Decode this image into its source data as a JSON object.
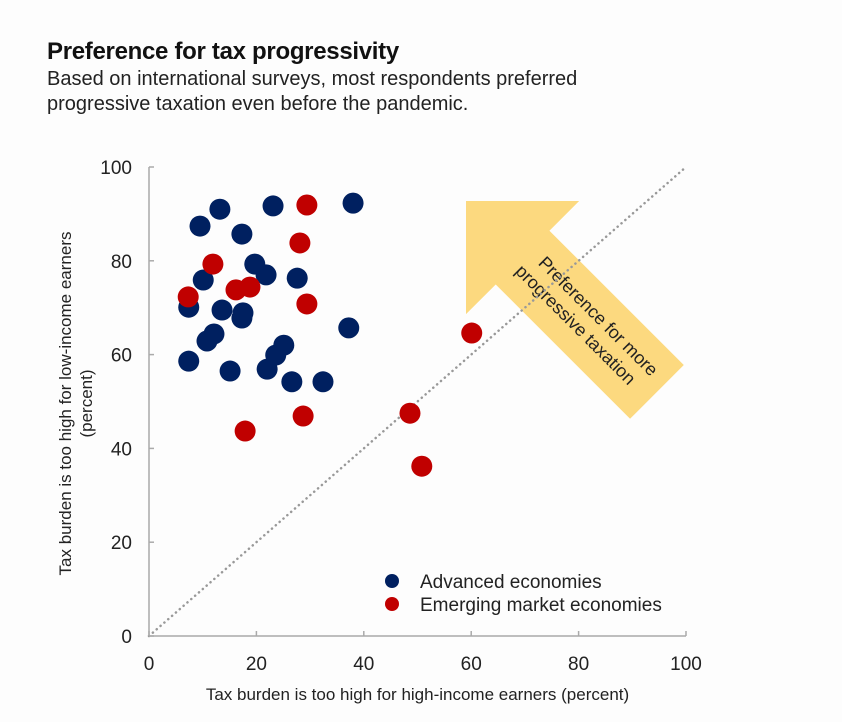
{
  "header": {
    "title": "Preference for tax progressivity",
    "subtitle_line1": "Based on international surveys, most respondents preferred",
    "subtitle_line2": "progressive taxation even before the pandemic."
  },
  "chart_data": {
    "type": "scatter",
    "title": "Preference for tax progressivity",
    "subtitle": "Based on international surveys, most respondents preferred progressive taxation even before the pandemic.",
    "xlabel": "Tax burden is too high for high-income earners (percent)",
    "ylabel_line1": "Tax burden is too high for low-income earners",
    "ylabel_line2": "(percent)",
    "xlim": [
      0,
      100
    ],
    "ylim": [
      0,
      100
    ],
    "xticks": [
      "0",
      "20",
      "40",
      "60",
      "80",
      "100"
    ],
    "yticks": [
      "0",
      "20",
      "40",
      "60",
      "80",
      "100"
    ],
    "grid": false,
    "legend_position": "bottom-right",
    "reference_line": {
      "type": "45-degree",
      "style": "dotted",
      "from": [
        0,
        0
      ],
      "to": [
        100,
        100
      ]
    },
    "annotation": {
      "text_line1": "Preference for more",
      "text_line2": "progressive taxation",
      "shape": "arrow pointing up-left",
      "color": "#fcd97f"
    },
    "series": [
      {
        "name": "Advanced economies",
        "color": "#002060",
        "points": [
          [
            13.2,
            91.0
          ],
          [
            23.1,
            91.7
          ],
          [
            38.0,
            92.3
          ],
          [
            9.5,
            87.4
          ],
          [
            17.3,
            85.7
          ],
          [
            19.7,
            79.3
          ],
          [
            21.8,
            77.0
          ],
          [
            10.1,
            75.9
          ],
          [
            27.6,
            76.3
          ],
          [
            7.4,
            70.1
          ],
          [
            13.6,
            69.5
          ],
          [
            17.5,
            68.9
          ],
          [
            17.3,
            67.8
          ],
          [
            12.1,
            64.4
          ],
          [
            10.8,
            62.9
          ],
          [
            37.2,
            65.7
          ],
          [
            7.4,
            58.6
          ],
          [
            15.1,
            56.5
          ],
          [
            25.1,
            62.0
          ],
          [
            23.6,
            59.9
          ],
          [
            22.0,
            56.9
          ],
          [
            26.6,
            54.2
          ],
          [
            32.4,
            54.2
          ]
        ]
      },
      {
        "name": "Emerging market economies",
        "color": "#c00000",
        "points": [
          [
            29.4,
            91.9
          ],
          [
            28.1,
            83.8
          ],
          [
            11.9,
            79.3
          ],
          [
            16.2,
            73.8
          ],
          [
            18.8,
            74.4
          ],
          [
            7.3,
            72.3
          ],
          [
            29.4,
            70.8
          ],
          [
            60.1,
            64.6
          ],
          [
            48.6,
            47.5
          ],
          [
            50.8,
            36.2
          ],
          [
            28.7,
            46.9
          ],
          [
            17.9,
            43.7
          ]
        ]
      }
    ]
  }
}
